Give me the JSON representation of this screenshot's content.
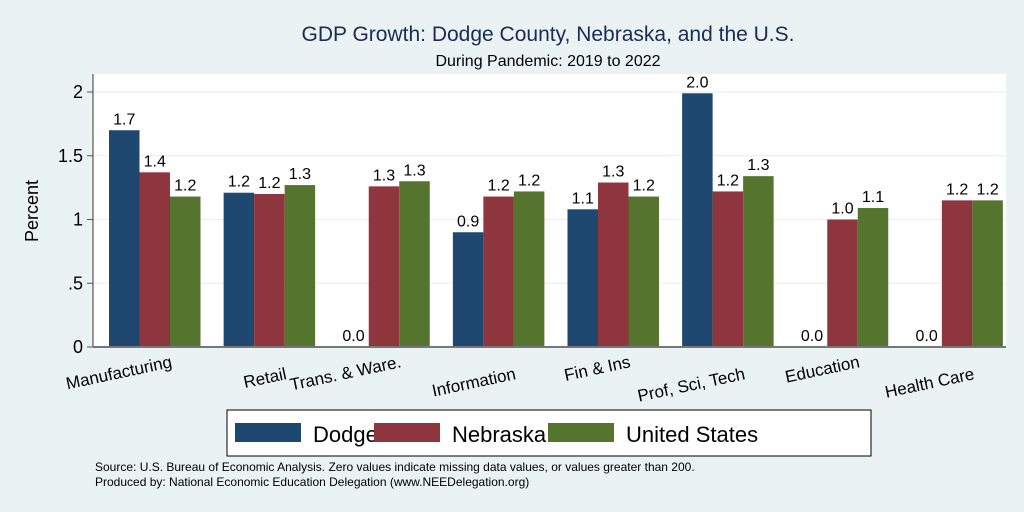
{
  "chart_data": {
    "type": "bar",
    "title": "GDP Growth: Dodge County, Nebraska, and the U.S.",
    "subtitle": "During Pandemic: 2019 to 2022",
    "xlabel": "",
    "ylabel": "Percent",
    "ylim": [
      0,
      2.15
    ],
    "yticks": [
      0,
      0.5,
      1,
      1.5,
      2
    ],
    "ytick_labels": [
      "0",
      ".5",
      "1",
      "1.5",
      "2"
    ],
    "grid": true,
    "categories": [
      "Manufacturing",
      "Retail",
      "Trans. & Ware.",
      "Information",
      "Fin & Ins",
      "Prof, Sci, Tech",
      "Education",
      "Health Care"
    ],
    "series": [
      {
        "name": "Dodge",
        "color": "#1f4870",
        "values": [
          1.7,
          1.21,
          0.0,
          0.9,
          1.08,
          1.99,
          0.0,
          0.0
        ],
        "labels": [
          "1.7",
          "1.2",
          "0.0",
          "0.9",
          "1.1",
          "2.0",
          "0.0",
          "0.0"
        ]
      },
      {
        "name": "Nebraska",
        "color": "#8f353d",
        "values": [
          1.37,
          1.2,
          1.26,
          1.18,
          1.29,
          1.22,
          1.0,
          1.15
        ],
        "labels": [
          "1.4",
          "1.2",
          "1.3",
          "1.2",
          "1.3",
          "1.2",
          "1.0",
          "1.2"
        ]
      },
      {
        "name": "United States",
        "color": "#55752f",
        "values": [
          1.18,
          1.27,
          1.3,
          1.22,
          1.18,
          1.34,
          1.09,
          1.15
        ],
        "labels": [
          "1.2",
          "1.3",
          "1.3",
          "1.2",
          "1.2",
          "1.3",
          "1.1",
          "1.2"
        ]
      }
    ],
    "legend_position": "bottom",
    "notes": [
      "Source: U.S. Bureau of Economic Analysis. Zero values indicate missing data values, or values greater than 200.",
      "Produced by: National Economic Education Delegation (www.NEEDelegation.org)"
    ]
  }
}
